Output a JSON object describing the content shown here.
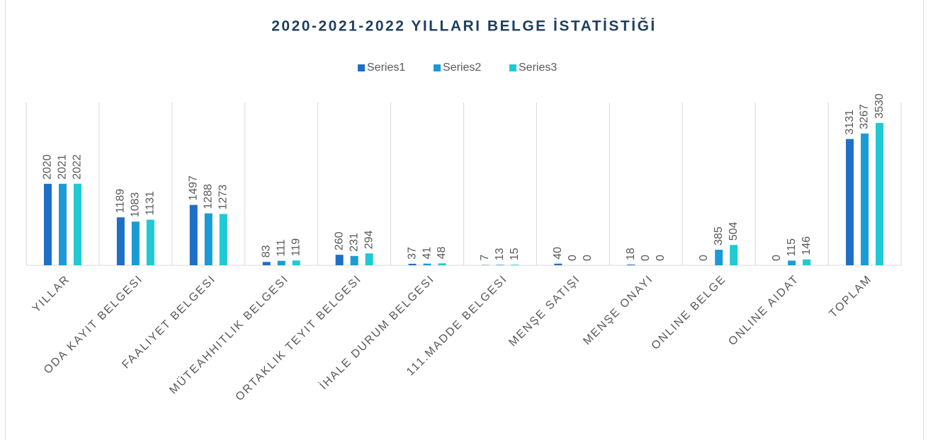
{
  "chart_data": {
    "type": "bar",
    "title": "2020-2021-2022 YILLARI BELGE İSTATİSTİĞİ",
    "categories": [
      "YILLAR",
      "ODA KAYIT BELGESI",
      "FAALIYET BELGESI",
      "MÜTEAHHITLIK BELGESI",
      "ORTAKLIK TEYIT BELGESI",
      "İHALE DURUM BELGESI",
      "111.MADDE BELGESI",
      "MENŞE SATIŞI",
      "MENŞE ONAYI",
      "ONLINE BELGE",
      "ONLINE AIDAT",
      "TOPLAM"
    ],
    "series": [
      {
        "name": "Series1",
        "color": "#1f6fc5",
        "values": [
          2020,
          1189,
          1497,
          83,
          260,
          37,
          7,
          40,
          18,
          0,
          0,
          3131
        ]
      },
      {
        "name": "Series2",
        "color": "#1a9bd7",
        "values": [
          2021,
          1083,
          1288,
          111,
          231,
          41,
          13,
          0,
          0,
          385,
          115,
          3267
        ]
      },
      {
        "name": "Series3",
        "color": "#1ecad3",
        "values": [
          2022,
          1131,
          1273,
          119,
          294,
          48,
          15,
          0,
          0,
          504,
          146,
          3530
        ]
      }
    ],
    "ylim": [
      0,
      4000
    ],
    "legend": "top"
  }
}
